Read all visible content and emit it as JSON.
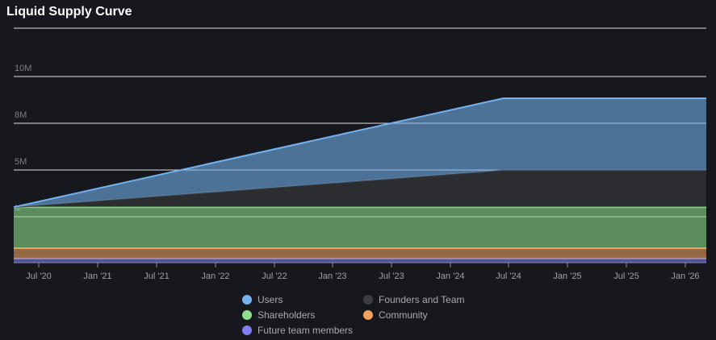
{
  "title": "Liquid Supply Curve",
  "chart_data": {
    "type": "area",
    "title": "Liquid Supply Curve",
    "x": [
      "2020-05-01",
      "2024-06-15",
      "2026-03-01"
    ],
    "x_tick_labels": [
      "Jul '20",
      "Jan '21",
      "Jul '21",
      "Jan '22",
      "Jul '22",
      "Jan '23",
      "Jul '23",
      "Jan '24",
      "Jul '24",
      "Jan '25",
      "Jul '25",
      "Jan '26"
    ],
    "y_tick_labels": [
      "",
      "M",
      "5M",
      "8M",
      "10M"
    ],
    "stacked": true,
    "series": [
      {
        "name": "Future team members",
        "color": "#7f7ff0",
        "values": [
          0.2,
          0.2,
          0.2
        ]
      },
      {
        "name": "Community",
        "color": "#f2a05a",
        "values": [
          0.5,
          0.5,
          0.5
        ]
      },
      {
        "name": "Shareholders",
        "color": "#8ee08e",
        "values": [
          2.0,
          2.0,
          2.0
        ]
      },
      {
        "name": "Founders and Team",
        "color": "#3c3c40",
        "values": [
          0.0,
          1.8,
          1.8
        ]
      },
      {
        "name": "Users",
        "color": "#74b3f0",
        "values": [
          0.0,
          3.5,
          3.5
        ]
      }
    ],
    "grid": true,
    "legend_position": "bottom"
  }
}
